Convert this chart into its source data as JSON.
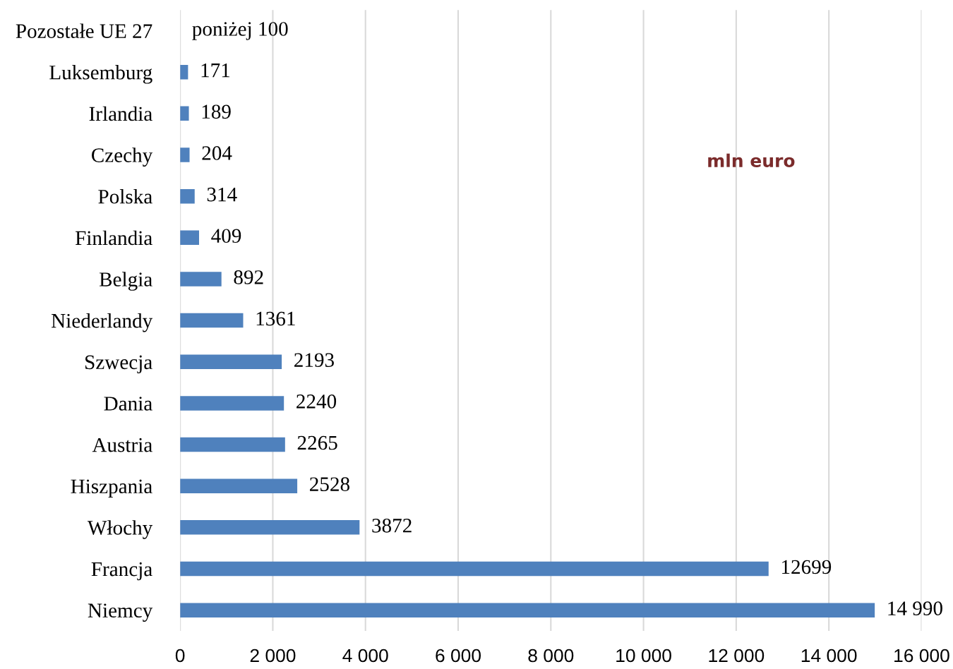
{
  "chart_data": {
    "type": "bar",
    "orientation": "horizontal",
    "categories": [
      "Pozostałe UE 27",
      "Luksemburg",
      "Irlandia",
      "Czechy",
      "Polska",
      "Finlandia",
      "Belgia",
      "Niederlandy",
      "Szwecja",
      "Dania",
      "Austria",
      "Hiszpania",
      "Włochy",
      "Francja",
      "Niemcy"
    ],
    "values": [
      null,
      171,
      189,
      204,
      314,
      409,
      892,
      1361,
      2193,
      2240,
      2265,
      2528,
      3872,
      12699,
      14990
    ],
    "value_labels": [
      "poniżej 100",
      "171",
      "189",
      "204",
      "314",
      "409",
      "892",
      "1361",
      "2193",
      "2240",
      "2265",
      "2528",
      "3872",
      "12699",
      "14 990"
    ],
    "color": "#4f81bd",
    "xlim": [
      0,
      16000
    ],
    "xticks": [
      0,
      {
        "value": 2000,
        "label": "2 000"
      },
      {
        "value": 4000,
        "label": "4 000"
      },
      {
        "value": 6000,
        "label": "6 000"
      },
      {
        "value": 8000,
        "label": "8 000"
      },
      {
        "value": 10000,
        "label": "10 000"
      },
      {
        "value": 12000,
        "label": "12 000"
      },
      {
        "value": 14000,
        "label": "14 000"
      },
      {
        "value": 16000,
        "label": "16 000"
      }
    ],
    "grid": "x",
    "annotations": [
      "mln euro"
    ]
  }
}
